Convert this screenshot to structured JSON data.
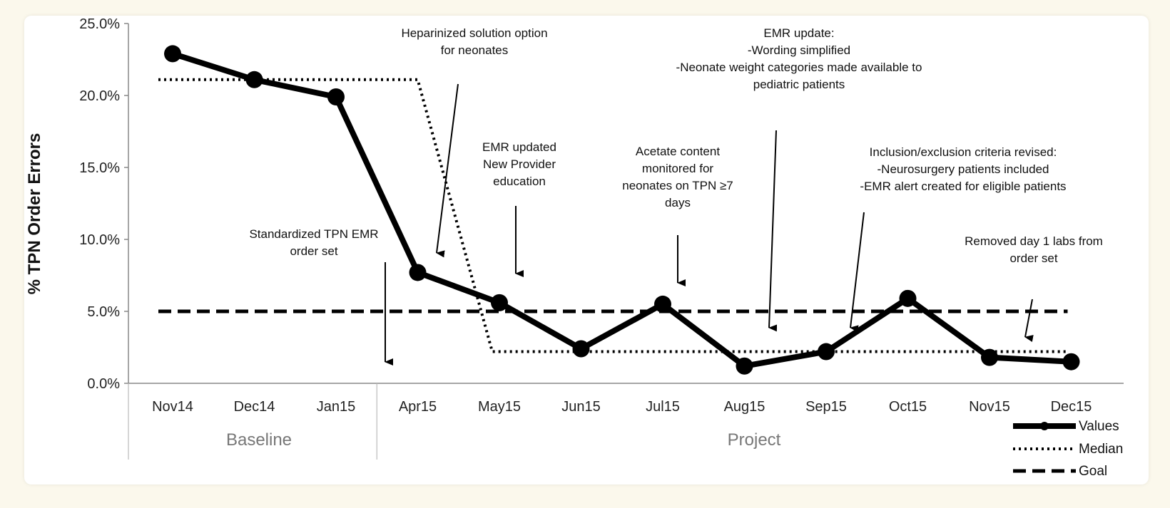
{
  "chart_data": {
    "type": "line",
    "title": "",
    "ylabel": "% TPN Order Errors",
    "xlabel": "",
    "ylim": [
      0,
      25
    ],
    "yticks": [
      "0.0%",
      "5.0%",
      "10.0%",
      "15.0%",
      "20.0%",
      "25.0%"
    ],
    "categories": [
      "Nov14",
      "Dec14",
      "Jan15",
      "Apr15",
      "May15",
      "Jun15",
      "Jul15",
      "Aug15",
      "Sep15",
      "Oct15",
      "Nov15",
      "Dec15"
    ],
    "phases": [
      {
        "label": "Baseline",
        "from": 0,
        "to": 2
      },
      {
        "label": "Project",
        "from": 3,
        "to": 11
      }
    ],
    "series": [
      {
        "name": "Values",
        "style": "solid",
        "values": [
          22.9,
          21.1,
          19.9,
          7.7,
          5.6,
          2.4,
          5.5,
          1.2,
          2.2,
          5.9,
          1.8,
          1.5
        ]
      },
      {
        "name": "Median",
        "style": "dotted",
        "values": [
          21.1,
          21.1,
          21.1,
          21.1,
          2.2,
          2.2,
          2.2,
          2.2,
          2.2,
          2.2,
          2.2,
          2.2
        ]
      },
      {
        "name": "Goal",
        "style": "dashed",
        "values": [
          5.0,
          5.0,
          5.0,
          5.0,
          5.0,
          5.0,
          5.0,
          5.0,
          5.0,
          5.0,
          5.0,
          5.0
        ]
      }
    ],
    "legend_position": "bottom-right",
    "annotations": [
      {
        "lines": [
          "Standardized TPN EMR",
          "order set"
        ]
      },
      {
        "lines": [
          "Heparinized solution option",
          "for neonates"
        ]
      },
      {
        "lines": [
          "EMR updated",
          "New Provider",
          "education"
        ]
      },
      {
        "lines": [
          "Acetate content",
          "monitored for",
          "neonates on TPN ≥7",
          "days"
        ]
      },
      {
        "lines": [
          "EMR update:",
          "-Wording simplified",
          "-Neonate weight categories made available to",
          "pediatric patients"
        ]
      },
      {
        "lines": [
          "Inclusion/exclusion criteria revised:",
          "-Neurosurgery patients included",
          "-EMR alert created for eligible patients"
        ]
      },
      {
        "lines": [
          "Removed day 1 labs from",
          "order set"
        ]
      }
    ],
    "colors": {
      "line": "#000000",
      "phase_text": "#777777",
      "divider": "#bbbbbb"
    }
  }
}
